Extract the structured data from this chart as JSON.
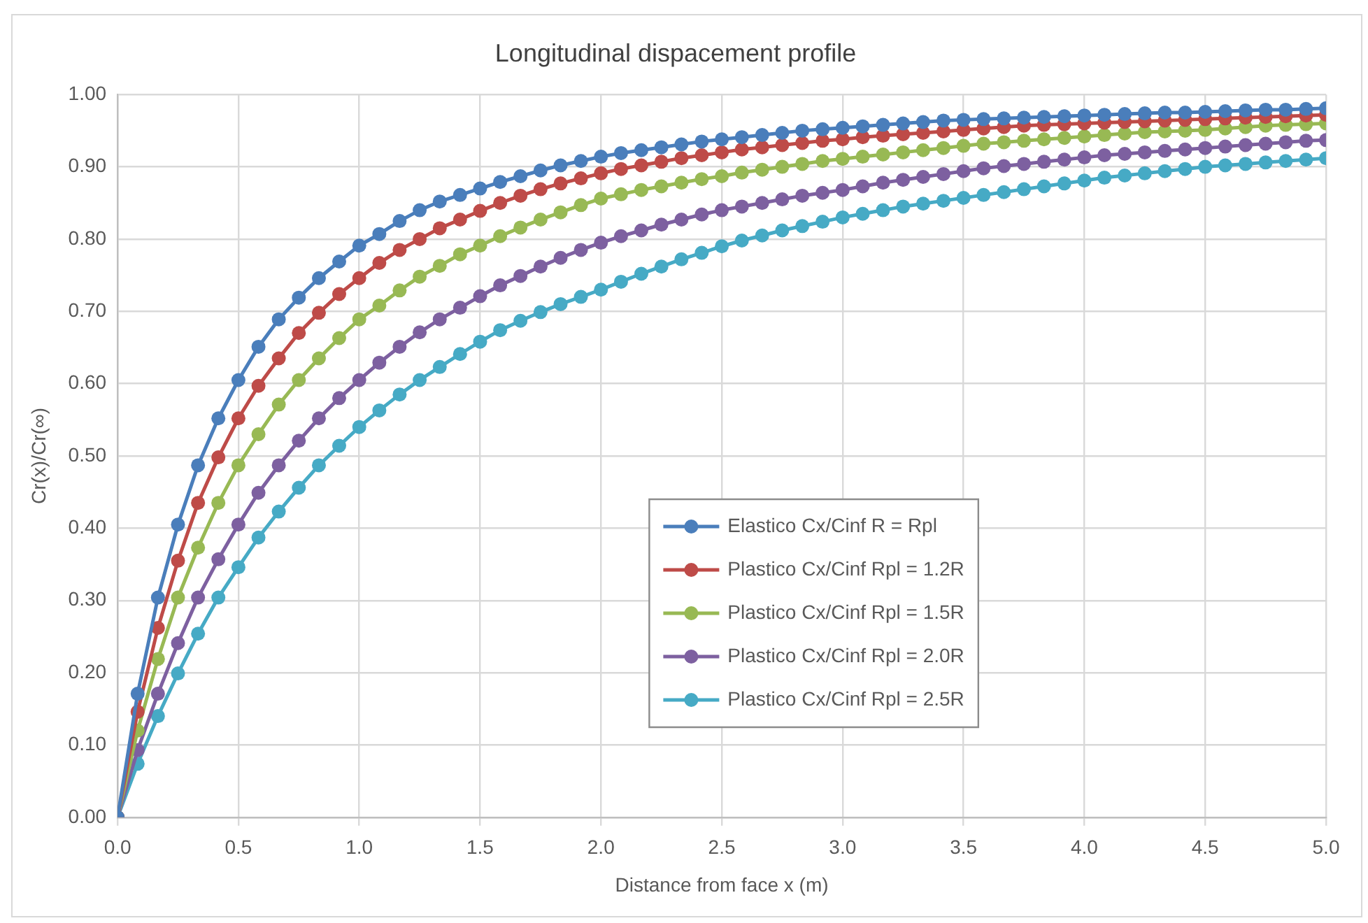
{
  "chart_data": {
    "type": "line",
    "title": "Longitudinal dispacement profile",
    "xlabel": "Distance from face x (m)",
    "ylabel": "Cr(x)/Cr(∞)",
    "x": [
      0,
      0.083,
      0.167,
      0.25,
      0.333,
      0.417,
      0.5,
      0.583,
      0.667,
      0.75,
      0.833,
      0.917,
      1,
      1.083,
      1.167,
      1.25,
      1.333,
      1.417,
      1.5,
      1.583,
      1.667,
      1.75,
      1.833,
      1.917,
      2,
      2.083,
      2.167,
      2.25,
      2.333,
      2.417,
      2.5,
      2.583,
      2.667,
      2.75,
      2.833,
      2.917,
      3,
      3.083,
      3.167,
      3.25,
      3.333,
      3.417,
      3.5,
      3.583,
      3.667,
      3.75,
      3.833,
      3.917,
      4,
      4.083,
      4.167,
      4.25,
      4.333,
      4.417,
      4.5,
      4.583,
      4.667,
      4.75,
      4.833,
      4.917,
      5
    ],
    "series": [
      {
        "name": "Elastico Cx/Cinf R = Rpl",
        "color": "#4a7ebb",
        "values": [
          0,
          0.171,
          0.304,
          0.405,
          0.487,
          0.552,
          0.605,
          0.651,
          0.689,
          0.719,
          0.746,
          0.769,
          0.791,
          0.807,
          0.825,
          0.84,
          0.852,
          0.861,
          0.87,
          0.879,
          0.887,
          0.895,
          0.902,
          0.908,
          0.914,
          0.919,
          0.923,
          0.927,
          0.931,
          0.935,
          0.938,
          0.941,
          0.944,
          0.947,
          0.95,
          0.952,
          0.954,
          0.956,
          0.958,
          0.96,
          0.962,
          0.964,
          0.965,
          0.966,
          0.967,
          0.968,
          0.969,
          0.97,
          0.971,
          0.972,
          0.973,
          0.974,
          0.975,
          0.975,
          0.976,
          0.977,
          0.978,
          0.979,
          0.979,
          0.98,
          0.981
        ]
      },
      {
        "name": "Plastico Cx/Cinf Rpl = 1.2R",
        "color": "#be4b48",
        "values": [
          0,
          0.146,
          0.262,
          0.355,
          0.435,
          0.498,
          0.552,
          0.597,
          0.635,
          0.67,
          0.698,
          0.724,
          0.746,
          0.767,
          0.785,
          0.8,
          0.815,
          0.827,
          0.839,
          0.85,
          0.86,
          0.869,
          0.877,
          0.884,
          0.891,
          0.897,
          0.902,
          0.907,
          0.912,
          0.916,
          0.92,
          0.924,
          0.927,
          0.93,
          0.933,
          0.936,
          0.938,
          0.941,
          0.943,
          0.945,
          0.947,
          0.949,
          0.951,
          0.953,
          0.955,
          0.957,
          0.958,
          0.959,
          0.96,
          0.961,
          0.962,
          0.963,
          0.964,
          0.965,
          0.966,
          0.967,
          0.968,
          0.969,
          0.97,
          0.971,
          0.972
        ]
      },
      {
        "name": "Plastico Cx/Cinf Rpl = 1.5R",
        "color": "#98b954",
        "values": [
          0,
          0.12,
          0.219,
          0.304,
          0.373,
          0.435,
          0.487,
          0.53,
          0.571,
          0.605,
          0.635,
          0.663,
          0.689,
          0.708,
          0.729,
          0.748,
          0.763,
          0.779,
          0.791,
          0.804,
          0.816,
          0.827,
          0.837,
          0.847,
          0.856,
          0.862,
          0.868,
          0.873,
          0.878,
          0.883,
          0.887,
          0.892,
          0.896,
          0.9,
          0.904,
          0.908,
          0.911,
          0.914,
          0.917,
          0.92,
          0.923,
          0.926,
          0.929,
          0.932,
          0.934,
          0.936,
          0.938,
          0.94,
          0.942,
          0.944,
          0.946,
          0.948,
          0.949,
          0.95,
          0.951,
          0.953,
          0.955,
          0.957,
          0.958,
          0.959,
          0.96
        ]
      },
      {
        "name": "Plastico Cx/Cinf Rpl = 2.0R",
        "color": "#7d60a0",
        "values": [
          0,
          0.093,
          0.171,
          0.241,
          0.304,
          0.357,
          0.405,
          0.449,
          0.487,
          0.521,
          0.552,
          0.58,
          0.605,
          0.629,
          0.651,
          0.671,
          0.689,
          0.705,
          0.721,
          0.736,
          0.749,
          0.762,
          0.774,
          0.785,
          0.795,
          0.804,
          0.812,
          0.82,
          0.827,
          0.834,
          0.84,
          0.845,
          0.85,
          0.855,
          0.86,
          0.864,
          0.868,
          0.873,
          0.878,
          0.882,
          0.886,
          0.89,
          0.894,
          0.898,
          0.901,
          0.904,
          0.907,
          0.91,
          0.913,
          0.916,
          0.918,
          0.92,
          0.922,
          0.924,
          0.926,
          0.928,
          0.93,
          0.932,
          0.934,
          0.936,
          0.937
        ]
      },
      {
        "name": "Plastico Cx/Cinf Rpl = 2.5R",
        "color": "#46aac5",
        "values": [
          0,
          0.074,
          0.14,
          0.199,
          0.254,
          0.304,
          0.346,
          0.387,
          0.423,
          0.456,
          0.487,
          0.514,
          0.54,
          0.563,
          0.585,
          0.605,
          0.623,
          0.641,
          0.658,
          0.674,
          0.687,
          0.699,
          0.71,
          0.72,
          0.73,
          0.741,
          0.752,
          0.762,
          0.772,
          0.781,
          0.79,
          0.798,
          0.805,
          0.812,
          0.818,
          0.824,
          0.83,
          0.835,
          0.84,
          0.845,
          0.849,
          0.853,
          0.857,
          0.861,
          0.865,
          0.869,
          0.873,
          0.877,
          0.881,
          0.885,
          0.888,
          0.891,
          0.894,
          0.897,
          0.9,
          0.902,
          0.904,
          0.906,
          0.908,
          0.91,
          0.912
        ]
      }
    ],
    "xlim": [
      0,
      5
    ],
    "ylim": [
      0,
      1
    ],
    "xticks": [
      {
        "value": 0,
        "label": "0.0"
      },
      0.5,
      {
        "value": 1,
        "label": "1.0"
      },
      1.5,
      {
        "value": 2,
        "label": "2.0"
      },
      2.5,
      {
        "value": 3,
        "label": "3.0"
      },
      3.5,
      {
        "value": 4,
        "label": "4.0"
      },
      4.5,
      {
        "value": 5,
        "label": "5.0"
      }
    ],
    "yticks": [
      {
        "value": 0,
        "label": "0.00"
      },
      {
        "value": 0.1,
        "label": "0.10"
      },
      {
        "value": 0.2,
        "label": "0.20"
      },
      {
        "value": 0.3,
        "label": "0.30"
      },
      {
        "value": 0.4,
        "label": "0.40"
      },
      {
        "value": 0.5,
        "label": "0.50"
      },
      {
        "value": 0.6,
        "label": "0.60"
      },
      {
        "value": 0.7,
        "label": "0.70"
      },
      {
        "value": 0.8,
        "label": "0.80"
      },
      {
        "value": 0.9,
        "label": "0.90"
      },
      {
        "value": 1,
        "label": "1.00"
      }
    ],
    "grid": true,
    "legend": "bottom",
    "marker": "circle",
    "line_style": "solid"
  }
}
